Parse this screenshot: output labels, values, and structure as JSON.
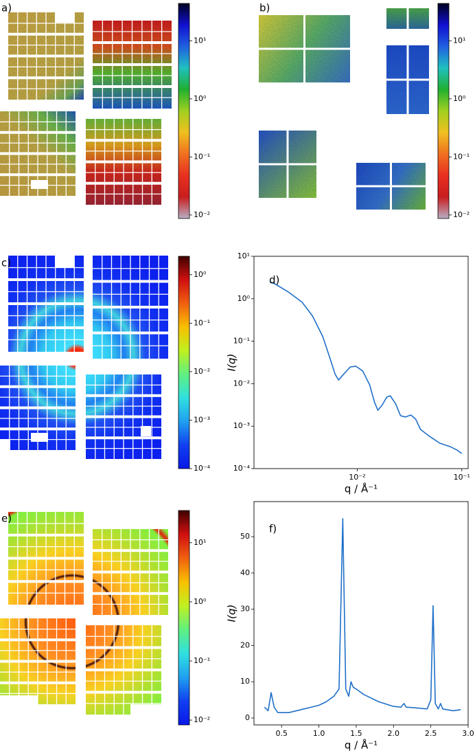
{
  "chart_data": [
    {
      "type": "image",
      "label": "a)",
      "colorbar": {
        "scale": "log",
        "lim": [
          0.0087,
          44
        ],
        "ticks": [
          {
            "value": 0.01,
            "label": "10⁻²"
          },
          {
            "value": 0.1,
            "label": "10⁻¹"
          },
          {
            "value": 1,
            "label": "10⁰"
          },
          {
            "value": 10,
            "label": "10¹"
          }
        ],
        "colors": [
          "#b8aec4",
          "#c81e1e",
          "#e83020",
          "#f07020",
          "#f0c020",
          "#a0d020",
          "#20b030",
          "#20c0c0",
          "#2060e0",
          "#1010d0",
          "#000020"
        ]
      }
    },
    {
      "type": "image",
      "label": "b)",
      "colorbar": {
        "scale": "log",
        "lim": [
          0.0087,
          44
        ],
        "ticks": [
          {
            "value": 0.01,
            "label": "10⁻²"
          },
          {
            "value": 0.1,
            "label": "10⁻¹"
          },
          {
            "value": 1,
            "label": "10⁰"
          },
          {
            "value": 10,
            "label": "10¹"
          }
        ],
        "colors": [
          "#b8aec4",
          "#c81e1e",
          "#e83020",
          "#f07020",
          "#f0c020",
          "#a0d020",
          "#20b030",
          "#20c0c0",
          "#2060e0",
          "#1010d0",
          "#000020"
        ]
      }
    },
    {
      "type": "image",
      "label": "c)",
      "colorbar": {
        "scale": "log",
        "lim": [
          0.0001,
          2.4
        ],
        "ticks": [
          {
            "value": 0.0001,
            "label": "10⁻⁴"
          },
          {
            "value": 0.001,
            "label": "10⁻³"
          },
          {
            "value": 0.01,
            "label": "10⁻²"
          },
          {
            "value": 0.1,
            "label": "10⁻¹"
          },
          {
            "value": 1,
            "label": "10⁰"
          }
        ],
        "colors": [
          "#0a18e8",
          "#1040f0",
          "#20a0f0",
          "#30e0e0",
          "#60f080",
          "#c0f020",
          "#f8c000",
          "#f06010",
          "#d01010",
          "#400000"
        ]
      }
    },
    {
      "type": "line",
      "label": "d)",
      "xlabel": "q / Å⁻¹",
      "ylabel": "I(q)",
      "xscale": "log",
      "yscale": "log",
      "xlim": [
        0.00103,
        0.115
      ],
      "ylim": [
        0.0001,
        10
      ],
      "color": "#1f6fc8",
      "xticks": [
        {
          "value": 0.01,
          "label": "10⁻²"
        },
        {
          "value": 0.1,
          "label": "10⁻¹"
        }
      ],
      "yticks": [
        {
          "value": 0.0001,
          "label": "10⁻⁴"
        },
        {
          "value": 0.001,
          "label": "10⁻³"
        },
        {
          "value": 0.01,
          "label": "10⁻²"
        },
        {
          "value": 0.1,
          "label": "10⁻¹"
        },
        {
          "value": 1,
          "label": "10⁰"
        },
        {
          "value": 10,
          "label": "10¹"
        }
      ],
      "x": [
        0.00146,
        0.00163,
        0.0022,
        0.00298,
        0.00374,
        0.00469,
        0.00545,
        0.00616,
        0.00664,
        0.00738,
        0.00859,
        0.0097,
        0.01129,
        0.01314,
        0.0146,
        0.01576,
        0.01725,
        0.01918,
        0.02069,
        0.02335,
        0.02596,
        0.02888,
        0.03259,
        0.03624,
        0.0403,
        0.04909,
        0.06156,
        0.0772,
        0.0899,
        0.09999
      ],
      "values": [
        2.52,
        2.25,
        1.44,
        0.824,
        0.391,
        0.128,
        0.0418,
        0.0165,
        0.0122,
        0.0165,
        0.0248,
        0.0258,
        0.0199,
        0.00942,
        0.00372,
        0.00237,
        0.00308,
        0.00482,
        0.00519,
        0.00332,
        0.00176,
        0.00164,
        0.00183,
        0.00146,
        0.000836,
        0.000577,
        0.000397,
        0.00033,
        0.000274,
        0.000227
      ]
    },
    {
      "type": "image",
      "label": "e)",
      "colorbar": {
        "scale": "log",
        "lim": [
          0.0083,
          35
        ],
        "ticks": [
          {
            "value": 0.01,
            "label": "10⁻²"
          },
          {
            "value": 0.1,
            "label": "10⁻¹"
          },
          {
            "value": 1,
            "label": "10⁰"
          },
          {
            "value": 10,
            "label": "10¹"
          }
        ],
        "colors": [
          "#0a18e8",
          "#1040f0",
          "#20a0f0",
          "#30e0e0",
          "#60f080",
          "#c0f020",
          "#f8c000",
          "#f06010",
          "#d01010",
          "#400000"
        ]
      }
    },
    {
      "type": "line",
      "label": "f)",
      "xlabel": "q / Å⁻¹",
      "ylabel": "I(q)",
      "xscale": "linear",
      "yscale": "linear",
      "xlim": [
        0.13,
        3.0
      ],
      "ylim": [
        -1.9,
        59.7
      ],
      "color": "#1f6fc8",
      "xticks": [
        0.5,
        {
          "value": 1,
          "label": "1.0"
        },
        1.5,
        {
          "value": 2,
          "label": "2.0"
        },
        2.5,
        {
          "value": 3,
          "label": "3.0"
        }
      ],
      "yticks": [
        0,
        10,
        20,
        30,
        40,
        50
      ],
      "x": [
        0.27,
        0.32,
        0.36,
        0.4,
        0.45,
        0.6,
        0.7,
        0.8,
        0.9,
        1.0,
        1.1,
        1.2,
        1.27,
        1.32,
        1.36,
        1.4,
        1.43,
        1.46,
        1.5,
        1.6,
        1.8,
        2.0,
        2.1,
        2.14,
        2.17,
        2.3,
        2.45,
        2.5,
        2.53,
        2.56,
        2.6,
        2.63,
        2.66,
        2.8,
        2.9
      ],
      "values": [
        3,
        2,
        7,
        3,
        1.5,
        1.5,
        2,
        2.5,
        3,
        3.5,
        4.5,
        6,
        8,
        55,
        8,
        6,
        10,
        8.5,
        8,
        6.5,
        4.5,
        3.2,
        3,
        4,
        3,
        2.8,
        2.5,
        5,
        31,
        4,
        2.5,
        4,
        2.5,
        2,
        2.3
      ]
    }
  ]
}
